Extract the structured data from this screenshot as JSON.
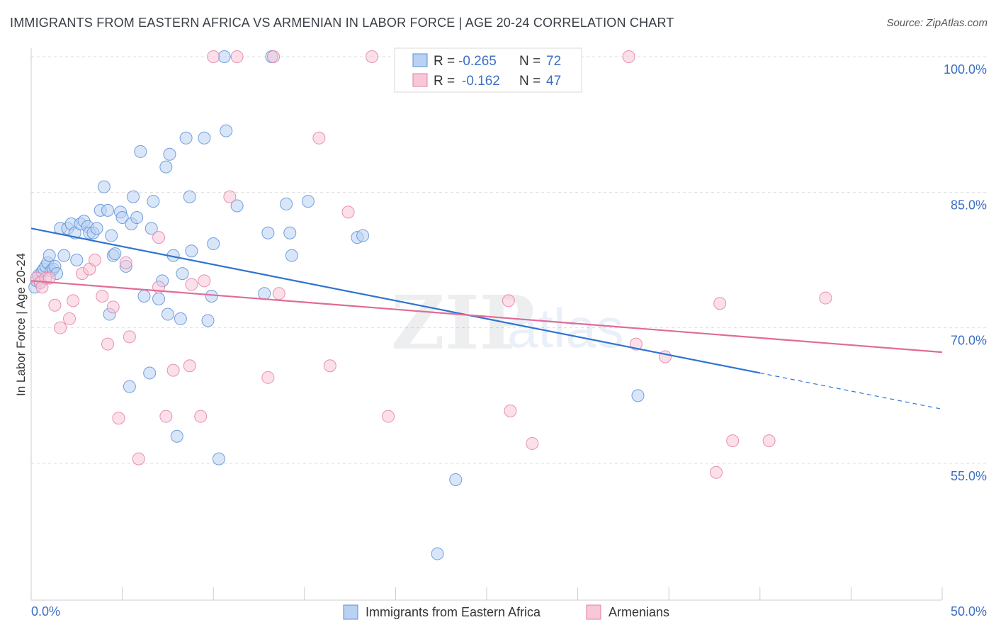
{
  "title": "IMMIGRANTS FROM EASTERN AFRICA VS ARMENIAN IN LABOR FORCE | AGE 20-24 CORRELATION CHART",
  "source": "Source: ZipAtlas.com",
  "watermark": {
    "zip": "ZIP",
    "atlas": "atlas"
  },
  "legend_top": [
    {
      "r_label": "R =",
      "r_value": "-0.265",
      "n_label": "N =",
      "n_value": "72",
      "color": "#5a8fd8",
      "fill": "#b9d1f3"
    },
    {
      "r_label": "R =",
      "r_value": "-0.162",
      "n_label": "N =",
      "n_value": "47",
      "color": "#e57fa3",
      "fill": "#f8c7d8"
    }
  ],
  "legend_bottom": [
    {
      "label": "Immigrants from Eastern Africa",
      "fill": "#b9d1f3",
      "stroke": "#5a8fd8"
    },
    {
      "label": "Armenians",
      "fill": "#f8c7d8",
      "stroke": "#e57fa3"
    }
  ],
  "chart_data": {
    "type": "scatter",
    "title": "IMMIGRANTS FROM EASTERN AFRICA VS ARMENIAN IN LABOR FORCE | AGE 20-24 CORRELATION CHART",
    "xlabel": "",
    "ylabel": "In Labor Force | Age 20-24",
    "xlim": [
      0,
      50
    ],
    "ylim": [
      40,
      102
    ],
    "x_tick_labels": [
      "0.0%",
      "50.0%"
    ],
    "y_ticks": [
      55,
      70,
      85,
      100
    ],
    "y_tick_labels": [
      "55.0%",
      "70.0%",
      "85.0%",
      "100.0%"
    ],
    "grid": true,
    "series": [
      {
        "name": "Immigrants from Eastern Africa",
        "color": "#5a8fd8",
        "fill": "#b9d1f3",
        "trend": {
          "x0": 0,
          "y0": 81.0,
          "x1": 40,
          "y1": 65.0,
          "dash_to_x": 50,
          "dash_to_y": 61.0
        },
        "points": [
          [
            0.2,
            74.5
          ],
          [
            0.3,
            75.2
          ],
          [
            0.4,
            75.8
          ],
          [
            0.5,
            75.0
          ],
          [
            0.6,
            76.2
          ],
          [
            0.7,
            76.5
          ],
          [
            0.8,
            76.8
          ],
          [
            0.9,
            77.2
          ],
          [
            1.0,
            78.0
          ],
          [
            1.1,
            76.3
          ],
          [
            1.2,
            76.5
          ],
          [
            1.3,
            76.8
          ],
          [
            1.4,
            76.0
          ],
          [
            1.6,
            81.0
          ],
          [
            1.8,
            78.0
          ],
          [
            2.0,
            81.0
          ],
          [
            2.2,
            81.5
          ],
          [
            2.4,
            80.5
          ],
          [
            2.5,
            77.5
          ],
          [
            2.7,
            81.5
          ],
          [
            2.9,
            81.8
          ],
          [
            3.1,
            81.2
          ],
          [
            3.2,
            80.5
          ],
          [
            3.4,
            80.5
          ],
          [
            3.6,
            81.0
          ],
          [
            3.8,
            83.0
          ],
          [
            4.0,
            85.6
          ],
          [
            4.2,
            83.0
          ],
          [
            4.3,
            71.5
          ],
          [
            4.4,
            80.2
          ],
          [
            4.5,
            78.0
          ],
          [
            4.6,
            78.2
          ],
          [
            4.9,
            82.8
          ],
          [
            5.0,
            82.2
          ],
          [
            5.2,
            76.8
          ],
          [
            5.4,
            63.5
          ],
          [
            5.5,
            81.5
          ],
          [
            5.6,
            84.5
          ],
          [
            5.8,
            82.2
          ],
          [
            6.0,
            89.5
          ],
          [
            6.2,
            73.5
          ],
          [
            6.5,
            65.0
          ],
          [
            6.6,
            81.0
          ],
          [
            6.7,
            84.0
          ],
          [
            7.0,
            73.2
          ],
          [
            7.2,
            75.2
          ],
          [
            7.4,
            87.8
          ],
          [
            7.5,
            71.5
          ],
          [
            7.6,
            89.2
          ],
          [
            7.8,
            78.0
          ],
          [
            8.0,
            58.0
          ],
          [
            8.2,
            71.0
          ],
          [
            8.3,
            76.0
          ],
          [
            8.5,
            91.0
          ],
          [
            8.7,
            84.5
          ],
          [
            8.8,
            78.5
          ],
          [
            9.5,
            91.0
          ],
          [
            9.7,
            70.8
          ],
          [
            9.9,
            73.5
          ],
          [
            10.0,
            79.3
          ],
          [
            10.3,
            55.5
          ],
          [
            10.6,
            100.0
          ],
          [
            10.7,
            91.8
          ],
          [
            11.3,
            83.5
          ],
          [
            12.8,
            73.8
          ],
          [
            13.0,
            80.5
          ],
          [
            13.2,
            100.0
          ],
          [
            14.0,
            83.7
          ],
          [
            14.2,
            80.5
          ],
          [
            14.3,
            78.0
          ],
          [
            15.2,
            84.0
          ],
          [
            17.9,
            80.0
          ],
          [
            18.2,
            80.2
          ],
          [
            22.3,
            45.0
          ],
          [
            23.3,
            53.2
          ],
          [
            33.3,
            62.5
          ]
        ]
      },
      {
        "name": "Armenians",
        "color": "#e57fa3",
        "fill": "#f8c7d8",
        "trend": {
          "x0": 0,
          "y0": 75.2,
          "x1": 50,
          "y1": 67.3
        },
        "points": [
          [
            0.3,
            75.5
          ],
          [
            0.5,
            75.0
          ],
          [
            0.6,
            74.5
          ],
          [
            0.8,
            75.5
          ],
          [
            1.0,
            75.5
          ],
          [
            1.3,
            72.5
          ],
          [
            1.6,
            70.0
          ],
          [
            2.1,
            71.0
          ],
          [
            2.3,
            73.0
          ],
          [
            2.8,
            76.0
          ],
          [
            3.2,
            76.5
          ],
          [
            3.5,
            77.5
          ],
          [
            3.9,
            73.5
          ],
          [
            4.2,
            68.2
          ],
          [
            4.5,
            72.3
          ],
          [
            4.8,
            60.0
          ],
          [
            5.2,
            77.2
          ],
          [
            5.4,
            69.0
          ],
          [
            5.9,
            55.5
          ],
          [
            7.0,
            80.0
          ],
          [
            7.0,
            74.5
          ],
          [
            7.4,
            60.2
          ],
          [
            7.8,
            65.3
          ],
          [
            8.7,
            65.8
          ],
          [
            8.8,
            74.8
          ],
          [
            9.3,
            60.2
          ],
          [
            9.5,
            75.2
          ],
          [
            10.0,
            100.0
          ],
          [
            10.9,
            84.5
          ],
          [
            11.3,
            100.0
          ],
          [
            13.0,
            64.5
          ],
          [
            13.3,
            100.0
          ],
          [
            13.6,
            73.8
          ],
          [
            15.8,
            91.0
          ],
          [
            16.4,
            65.8
          ],
          [
            17.4,
            82.8
          ],
          [
            18.7,
            100.0
          ],
          [
            19.6,
            60.2
          ],
          [
            26.2,
            73.0
          ],
          [
            26.3,
            60.8
          ],
          [
            27.5,
            57.2
          ],
          [
            32.8,
            100.0
          ],
          [
            33.2,
            68.2
          ],
          [
            34.8,
            66.8
          ],
          [
            37.6,
            54.0
          ],
          [
            37.8,
            72.7
          ],
          [
            38.5,
            57.5
          ],
          [
            40.5,
            57.5
          ],
          [
            43.6,
            73.3
          ]
        ]
      }
    ]
  }
}
